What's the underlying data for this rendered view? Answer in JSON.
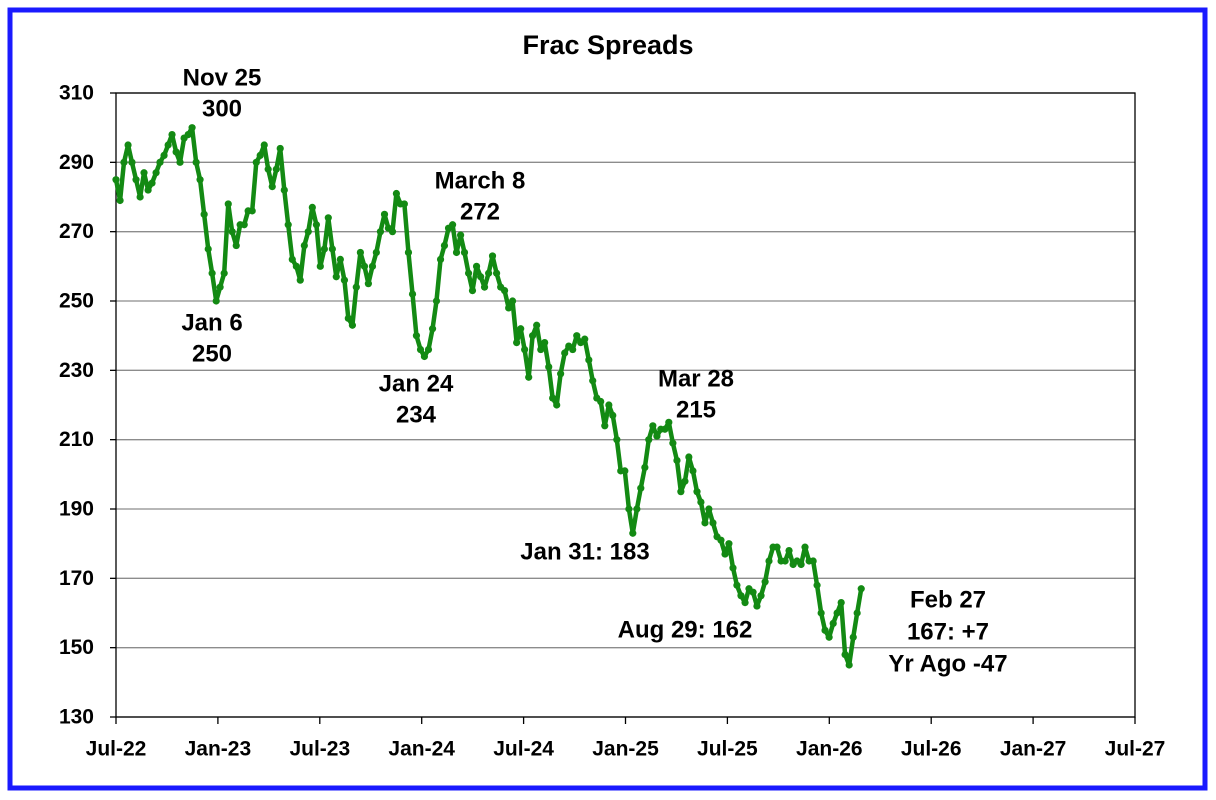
{
  "chart_data": {
    "type": "line",
    "title": "Frac Spreads",
    "color": "#138a13",
    "grid": true,
    "xlim": [
      0,
      60
    ],
    "xticks": [
      {
        "value": 0,
        "label": "Jul-22"
      },
      {
        "value": 6,
        "label": "Jan-23"
      },
      {
        "value": 12,
        "label": "Jul-23"
      },
      {
        "value": 18,
        "label": "Jan-24"
      },
      {
        "value": 24,
        "label": "Jul-24"
      },
      {
        "value": 30,
        "label": "Jan-25"
      },
      {
        "value": 36,
        "label": "Jul-25"
      },
      {
        "value": 42,
        "label": "Jan-26"
      },
      {
        "value": 48,
        "label": "Jul-26"
      },
      {
        "value": 54,
        "label": "Jan-27"
      },
      {
        "value": 60,
        "label": "Jul-27"
      }
    ],
    "ylim": [
      130,
      310
    ],
    "yticks": [
      130,
      150,
      170,
      190,
      210,
      230,
      250,
      270,
      290,
      310
    ],
    "x": [
      0,
      0.24,
      0.47,
      0.71,
      0.94,
      1.18,
      1.42,
      1.65,
      1.89,
      2.12,
      2.36,
      2.59,
      2.83,
      3.07,
      3.3,
      3.54,
      3.77,
      4.01,
      4.25,
      4.48,
      4.72,
      4.95,
      5.19,
      5.43,
      5.66,
      5.9,
      6.13,
      6.37,
      6.61,
      6.84,
      7.08,
      7.31,
      7.55,
      7.78,
      8.02,
      8.26,
      8.49,
      8.73,
      8.96,
      9.2,
      9.44,
      9.67,
      9.91,
      10.14,
      10.38,
      10.62,
      10.85,
      11.09,
      11.32,
      11.56,
      11.8,
      12.03,
      12.27,
      12.5,
      12.74,
      12.97,
      13.21,
      13.45,
      13.68,
      13.92,
      14.15,
      14.39,
      14.63,
      14.86,
      15.1,
      15.33,
      15.57,
      15.81,
      16.04,
      16.28,
      16.51,
      16.75,
      16.98,
      17.22,
      17.46,
      17.69,
      17.93,
      18.16,
      18.4,
      18.64,
      18.87,
      19.11,
      19.34,
      19.58,
      19.82,
      20.05,
      20.29,
      20.52,
      20.76,
      20.99,
      21.23,
      21.47,
      21.7,
      21.94,
      22.17,
      22.41,
      22.65,
      22.88,
      23.12,
      23.35,
      23.59,
      23.83,
      24.06,
      24.3,
      24.53,
      24.77,
      25.01,
      25.24,
      25.48,
      25.71,
      25.95,
      26.18,
      26.42,
      26.66,
      26.89,
      27.13,
      27.36,
      27.6,
      27.84,
      28.07,
      28.31,
      28.54,
      28.78,
      29.02,
      29.25,
      29.49,
      29.72,
      29.96,
      30.2,
      30.43,
      30.67,
      30.9,
      31.14,
      31.37,
      31.61,
      31.85,
      32.08,
      32.32,
      32.55,
      32.79,
      33.03,
      33.26,
      33.5,
      33.73,
      33.97,
      34.21,
      34.44,
      34.68,
      34.91,
      35.15,
      35.39,
      35.62,
      35.86,
      36.09,
      36.33,
      36.56,
      36.8,
      37.04,
      37.27,
      37.51,
      37.74,
      37.98,
      38.22,
      38.45,
      38.69,
      38.92,
      39.16,
      39.4,
      39.63,
      39.87,
      40.1,
      40.34,
      40.57,
      40.81,
      41.05,
      41.28,
      41.52,
      41.75,
      41.99,
      42.23,
      42.46,
      42.7,
      42.93,
      43.17,
      43.41,
      43.64,
      43.88
    ],
    "values": [
      285,
      279,
      290,
      295,
      290,
      285,
      280,
      287,
      282,
      284,
      287,
      290,
      292,
      295,
      298,
      293,
      290,
      297,
      298,
      300,
      290,
      285,
      275,
      265,
      258,
      250,
      254,
      258,
      278,
      270,
      266,
      272,
      272,
      276,
      276,
      290,
      292,
      295,
      288,
      283,
      288,
      294,
      282,
      272,
      262,
      260,
      256,
      266,
      270,
      277,
      272,
      260,
      265,
      274,
      265,
      257,
      262,
      256,
      245,
      243,
      254,
      264,
      260,
      255,
      260,
      264,
      270,
      275,
      271,
      270,
      281,
      278,
      278,
      264,
      252,
      240,
      236,
      234,
      236,
      242,
      250,
      262,
      266,
      271,
      272,
      264,
      269,
      264,
      258,
      253,
      260,
      257,
      254,
      258,
      263,
      258,
      254,
      253,
      248,
      250,
      238,
      242,
      236,
      228,
      240,
      243,
      236,
      238,
      231,
      222,
      220,
      229,
      235,
      237,
      236,
      240,
      238,
      239,
      233,
      227,
      222,
      221,
      214,
      220,
      217,
      210,
      201,
      201,
      190,
      183,
      190,
      196,
      202,
      210,
      214,
      211,
      213,
      213,
      215,
      209,
      204,
      195,
      198,
      205,
      201,
      195,
      192,
      186,
      190,
      186,
      182,
      181,
      177,
      180,
      173,
      168,
      165,
      163,
      167,
      166,
      162,
      165,
      169,
      175,
      179,
      179,
      175,
      175,
      178,
      174,
      175,
      174,
      179,
      175,
      175,
      168,
      160,
      155,
      153,
      157,
      160,
      163,
      148,
      145,
      153,
      160,
      167
    ],
    "annotations": [
      {
        "lines": [
          "Nov 25",
          "300"
        ]
      },
      {
        "lines": [
          "Jan 6",
          "250"
        ]
      },
      {
        "lines": [
          "Jan 24",
          "234"
        ]
      },
      {
        "lines": [
          "March 8",
          "272"
        ]
      },
      {
        "lines": [
          "Mar 28",
          "215"
        ]
      },
      {
        "lines": [
          "Jan 31: 183"
        ]
      },
      {
        "lines": [
          "Aug 29: 162"
        ]
      },
      {
        "lines": [
          "Feb 27",
          "167: +7",
          "Yr Ago -47"
        ]
      }
    ]
  }
}
